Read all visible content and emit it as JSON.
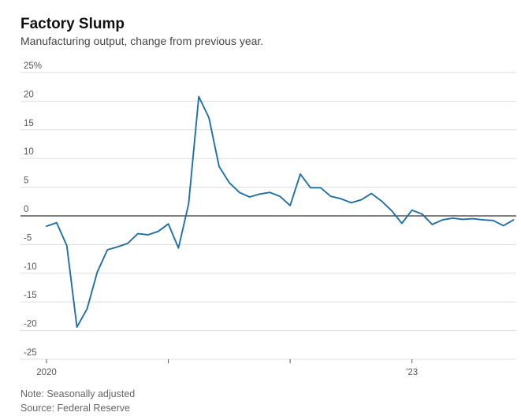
{
  "chart_data": {
    "type": "line",
    "title": "Factory Slump",
    "subtitle": "Manufacturing output, change from previous year.",
    "xlabel": "",
    "ylabel": "",
    "ylim": [
      -25,
      25
    ],
    "yticks": [
      25,
      20,
      15,
      10,
      5,
      0,
      -5,
      -10,
      -15,
      -20,
      -25
    ],
    "ytick_labels": [
      "25%",
      "20",
      "15",
      "10",
      "5",
      "0",
      "-5",
      "-10",
      "-15",
      "-20",
      "-25"
    ],
    "x_start": "2020-01",
    "x_labels": [
      {
        "label": "2020",
        "month_index": 0
      },
      {
        "label": "'23",
        "month_index": 36
      }
    ],
    "grid": true,
    "color": "#1f6fa8",
    "series": [
      {
        "name": "",
        "values": [
          -1.8,
          -1.2,
          -5.2,
          -19.4,
          -16.2,
          -9.8,
          -5.9,
          -5.4,
          -4.8,
          -3.1,
          -3.3,
          -2.7,
          -1.4,
          -5.6,
          2.1,
          20.8,
          17.1,
          8.6,
          5.8,
          4.1,
          3.3,
          3.8,
          4.1,
          3.4,
          1.8,
          7.3,
          4.9,
          4.9,
          3.4,
          3.0,
          2.3,
          2.8,
          3.9,
          2.6,
          0.9,
          -1.3,
          1.0,
          0.3,
          -1.5,
          -0.7,
          -0.4,
          -0.6,
          -0.5,
          -0.7,
          -0.8,
          -1.7,
          -0.7
        ]
      }
    ],
    "notes": [
      "Note: Seasonally adjusted",
      "Source: Federal Reserve"
    ]
  }
}
